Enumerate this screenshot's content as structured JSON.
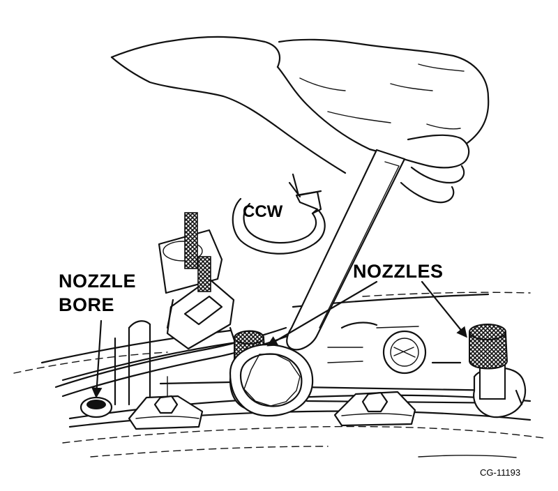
{
  "labels": {
    "rotation": "CCW",
    "nozzle_bore_line1": "NOZZLE",
    "nozzle_bore_line2": "BORE",
    "nozzles": "NOZZLES",
    "figure_id": "CG-11193"
  }
}
